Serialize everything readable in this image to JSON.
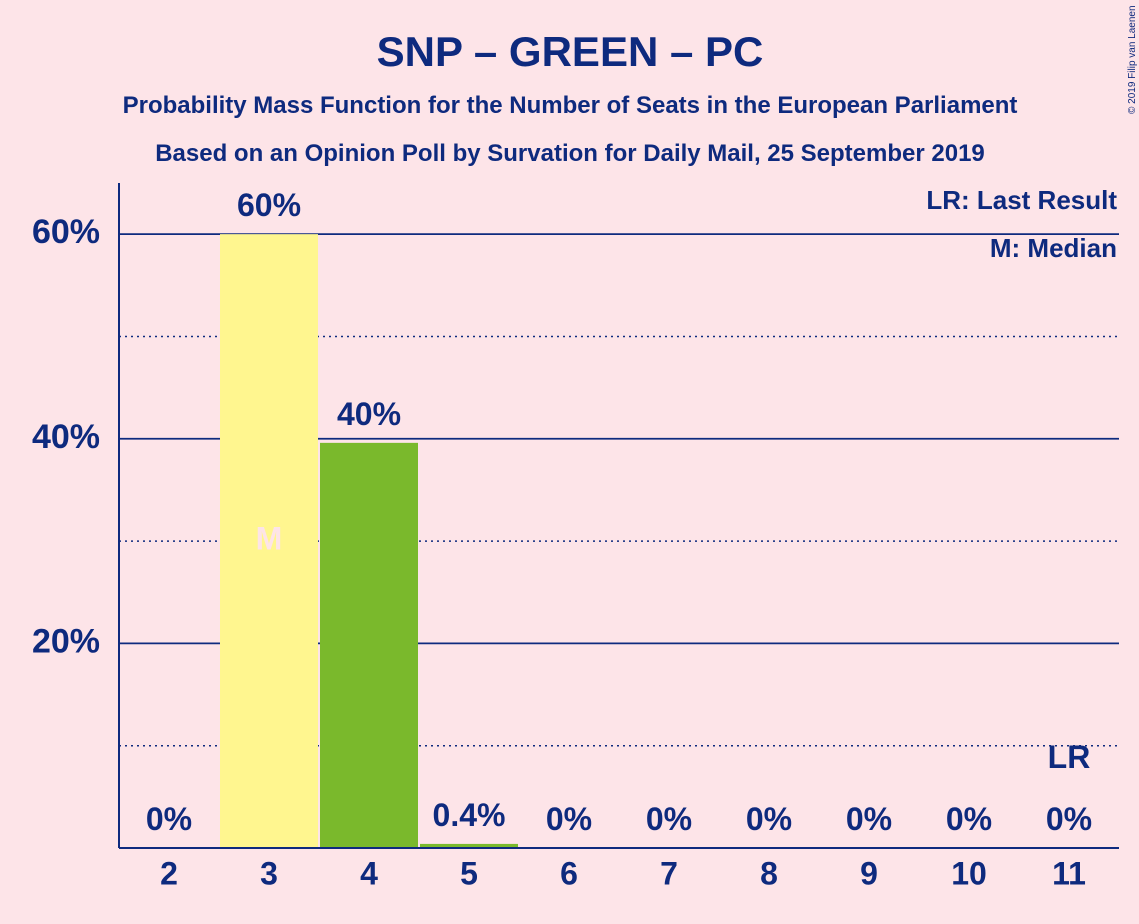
{
  "chart_data": {
    "type": "bar",
    "title": "SNP – GREEN – PC",
    "subtitle": "Probability Mass Function for the Number of Seats in the European Parliament",
    "subtitle2": "Based on an Opinion Poll by Survation for Daily Mail, 25 September 2019",
    "categories": [
      "2",
      "3",
      "4",
      "5",
      "6",
      "7",
      "8",
      "9",
      "10",
      "11"
    ],
    "values": [
      0,
      60,
      39.6,
      0.4,
      0,
      0,
      0,
      0,
      0,
      0
    ],
    "value_labels": [
      "0%",
      "60%",
      "40%",
      "0.4%",
      "0%",
      "0%",
      "0%",
      "0%",
      "0%",
      "0%"
    ],
    "bar_colors": [
      "#FFF68F",
      "#FFF68F",
      "#7AB92C",
      "#7AB92C",
      "#7AB92C",
      "#7AB92C",
      "#7AB92C",
      "#7AB92C",
      "#7AB92C",
      "#7AB92C"
    ],
    "ylim": [
      0,
      65
    ],
    "yticks": [
      20,
      40,
      60
    ],
    "ytick_labels": [
      "20%",
      "40%",
      "60%"
    ],
    "minor_gridlines": [
      10,
      30,
      50
    ],
    "median_category": "3",
    "median_marker": "M",
    "last_result_category": "11",
    "last_result_marker": "LR",
    "legend": {
      "placement": "top-right",
      "lr": "LR: Last Result",
      "m": "M: Median"
    },
    "copyright": "© 2019 Filip van Laenen",
    "colors": {
      "text": "#0E2A7E",
      "background": "#FDE4E8",
      "median_bar": "#FFF68F",
      "bar": "#7AB92C"
    }
  }
}
